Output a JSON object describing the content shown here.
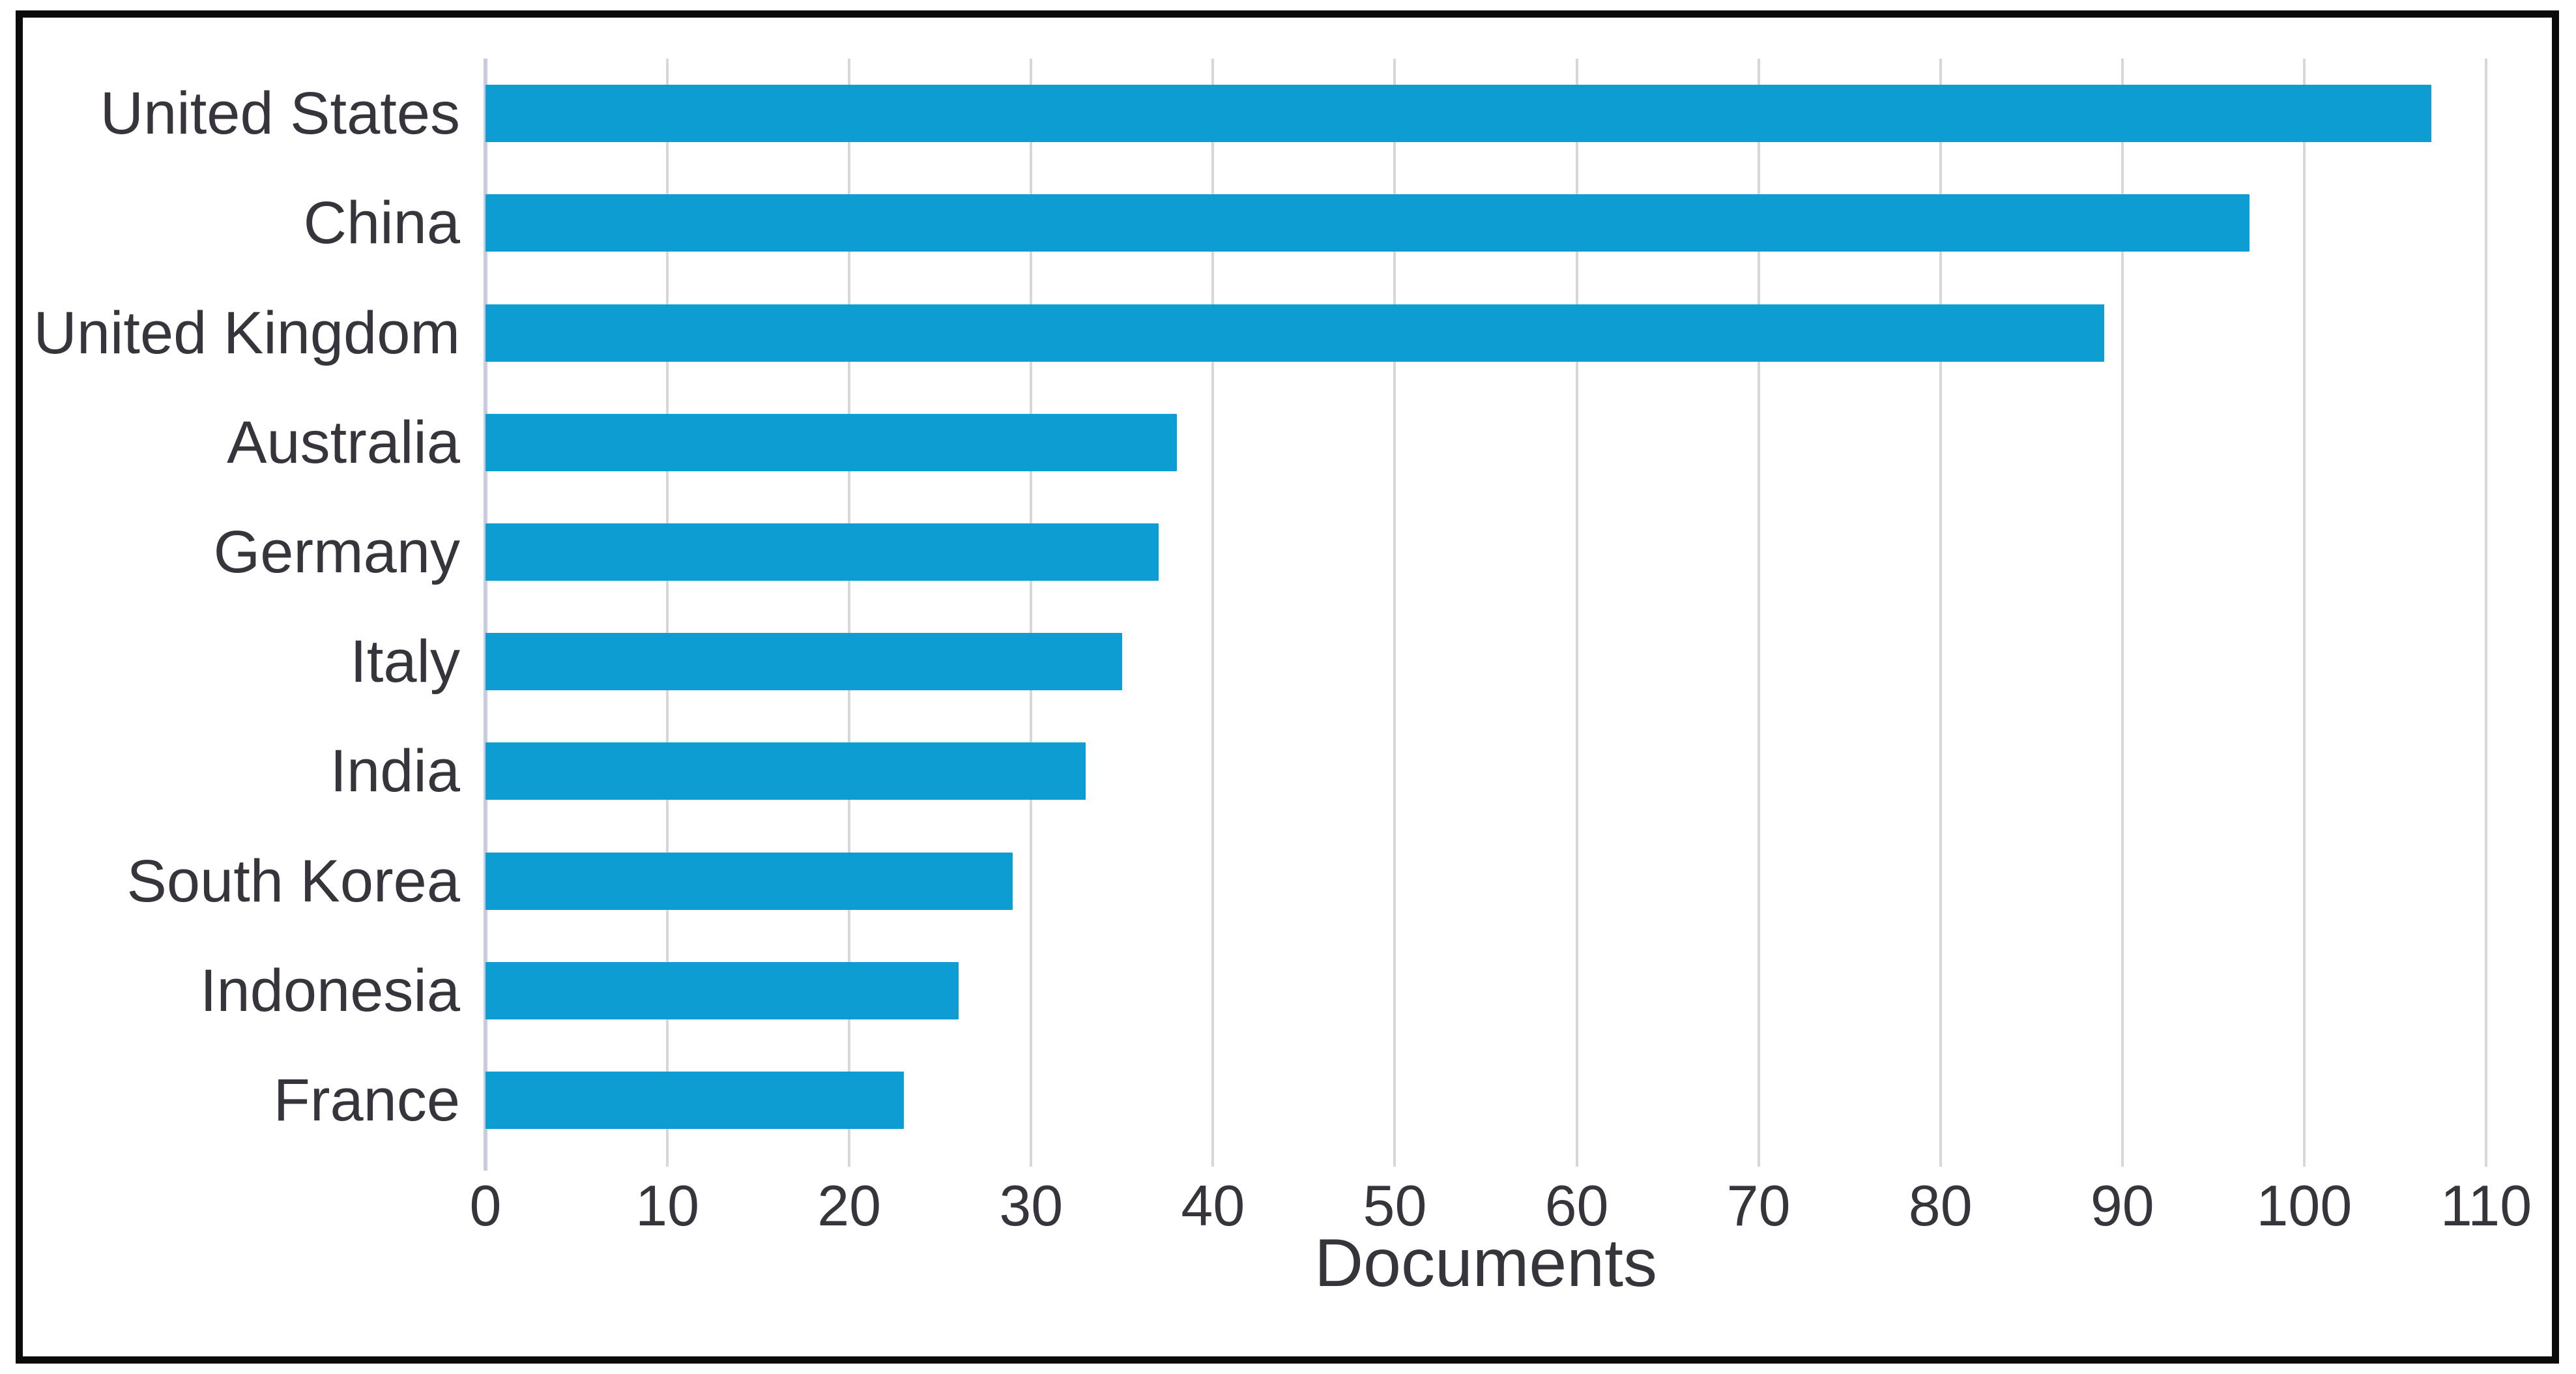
{
  "figure": {
    "background_color": "#ffffff",
    "frame_color": "#0b0b0b"
  },
  "chart_data": {
    "type": "bar",
    "orientation": "horizontal",
    "title": "",
    "categories": [
      "United States",
      "China",
      "United Kingdom",
      "Australia",
      "Germany",
      "Italy",
      "India",
      "South Korea",
      "Indonesia",
      "France"
    ],
    "values": [
      107,
      97,
      89,
      38,
      37,
      35,
      33,
      29,
      26,
      23
    ],
    "xlabel": "Documents",
    "ylabel": "",
    "x_ticks": [
      0,
      10,
      20,
      30,
      40,
      50,
      60,
      70,
      80,
      90,
      100,
      110
    ],
    "xlim": [
      0,
      110
    ],
    "grid": "vertical",
    "legend": "none",
    "colors": {
      "bar": "#0d9dd3",
      "gridline": "#d7d7d7",
      "zero_line": "#c8cbdd",
      "text": "#38343c"
    }
  }
}
